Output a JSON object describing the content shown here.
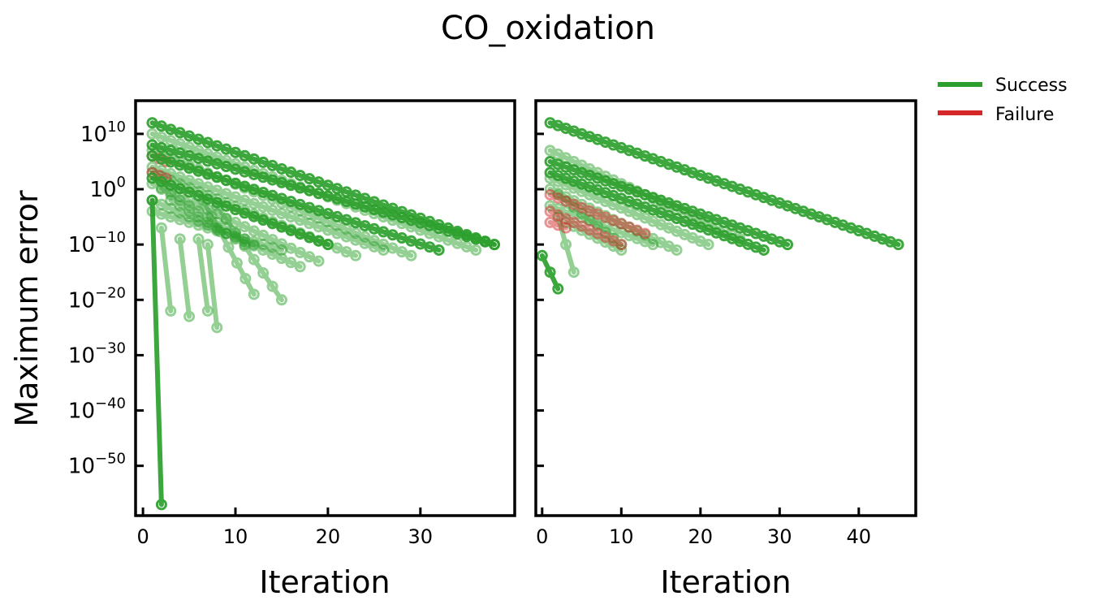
{
  "figure": {
    "title": "CO_oxidation",
    "ylabel": "Maximum error",
    "legend": {
      "placement": "outside-top-right",
      "items": [
        {
          "label": "Success",
          "color": "#2ca02c"
        },
        {
          "label": "Failure",
          "color": "#d62728"
        }
      ]
    },
    "colors": {
      "success": "#2ca02c",
      "failure": "#d62728",
      "axes": "#000000"
    }
  },
  "chart_data": [
    {
      "type": "line",
      "panel": "left",
      "xlabel": "Iteration",
      "ylabel": "Maximum error",
      "y_scale": "log",
      "xlim": [
        -0.8,
        40.2
      ],
      "ylim_exponent": [
        -59,
        16
      ],
      "xticks": [
        0,
        10,
        20,
        30
      ],
      "yticks": [
        {
          "label": "10",
          "sup": "10",
          "exp": 10
        },
        {
          "label": "10",
          "sup": "0",
          "exp": 0
        },
        {
          "label": "10",
          "sup": "−10",
          "exp": -10
        },
        {
          "label": "10",
          "sup": "−20",
          "exp": -20
        },
        {
          "label": "10",
          "sup": "−30",
          "exp": -30
        },
        {
          "label": "10",
          "sup": "−40",
          "exp": -40
        },
        {
          "label": "10",
          "sup": "−50",
          "exp": -50
        }
      ],
      "series": [
        {
          "status": "success",
          "style": "solid",
          "start": [
            1,
            12
          ],
          "end": [
            38,
            -10
          ]
        },
        {
          "status": "success",
          "style": "solid",
          "start": [
            1,
            8
          ],
          "end": [
            38,
            -10
          ]
        },
        {
          "status": "success",
          "style": "solid",
          "start": [
            1,
            6
          ],
          "end": [
            32,
            -11
          ]
        },
        {
          "status": "success",
          "style": "solid",
          "start": [
            1,
            2
          ],
          "end": [
            20,
            -10
          ]
        },
        {
          "status": "success",
          "style": "faint",
          "start": [
            1,
            10
          ],
          "end": [
            36,
            -11
          ]
        },
        {
          "status": "success",
          "style": "faint",
          "start": [
            1,
            7
          ],
          "end": [
            29,
            -12
          ]
        },
        {
          "status": "success",
          "style": "faint",
          "start": [
            1,
            4
          ],
          "end": [
            26,
            -11
          ]
        },
        {
          "status": "success",
          "style": "faint",
          "start": [
            1,
            3
          ],
          "end": [
            23,
            -12
          ]
        },
        {
          "status": "success",
          "style": "faint",
          "start": [
            1,
            1
          ],
          "end": [
            19,
            -13
          ]
        },
        {
          "status": "success",
          "style": "faint",
          "start": [
            1,
            -2
          ],
          "end": [
            17,
            -14
          ]
        },
        {
          "status": "success",
          "style": "faint",
          "start": [
            1,
            -4
          ],
          "end": [
            15,
            -11
          ]
        },
        {
          "status": "success",
          "style": "faint",
          "start": [
            2,
            0
          ],
          "end": [
            12,
            -10
          ]
        },
        {
          "status": "success",
          "style": "faint",
          "start": [
            3,
            -2
          ],
          "end": [
            11,
            -10
          ]
        },
        {
          "status": "success",
          "style": "faint",
          "start": [
            6.5,
            -2
          ],
          "end": [
            12,
            -19
          ]
        },
        {
          "status": "success",
          "style": "faint",
          "start": [
            8,
            -3
          ],
          "end": [
            15,
            -20
          ]
        },
        {
          "status": "success",
          "style": "faint",
          "start": [
            6,
            -9
          ],
          "end": [
            7,
            -22
          ]
        },
        {
          "status": "success",
          "style": "faint",
          "start": [
            7,
            -10
          ],
          "end": [
            8,
            -25
          ]
        },
        {
          "status": "success",
          "style": "faint",
          "start": [
            4,
            -9
          ],
          "end": [
            5,
            -23
          ]
        },
        {
          "status": "success",
          "style": "faint",
          "start": [
            2,
            -7
          ],
          "end": [
            3,
            -22
          ]
        },
        {
          "status": "success",
          "style": "solid",
          "start": [
            1,
            -2
          ],
          "end": [
            2,
            -57
          ]
        },
        {
          "status": "failure",
          "style": "faint",
          "start": [
            1,
            6
          ],
          "end": [
            2.5,
            5
          ]
        },
        {
          "status": "failure",
          "style": "faint",
          "start": [
            1,
            3
          ],
          "end": [
            2.5,
            2
          ]
        }
      ]
    },
    {
      "type": "line",
      "panel": "right",
      "xlabel": "Iteration",
      "y_scale": "log",
      "xlim": [
        -0.8,
        47.2
      ],
      "ylim_exponent": [
        -59,
        16
      ],
      "xticks": [
        0,
        10,
        20,
        30,
        40
      ],
      "series": [
        {
          "status": "success",
          "style": "solid",
          "start": [
            1,
            12
          ],
          "end": [
            45,
            -10
          ]
        },
        {
          "status": "success",
          "style": "solid",
          "start": [
            1,
            5
          ],
          "end": [
            31,
            -10
          ]
        },
        {
          "status": "success",
          "style": "solid",
          "start": [
            1,
            3
          ],
          "end": [
            28,
            -11
          ]
        },
        {
          "status": "success",
          "style": "faint",
          "start": [
            1,
            7
          ],
          "end": [
            25,
            -9
          ]
        },
        {
          "status": "success",
          "style": "faint",
          "start": [
            1,
            2
          ],
          "end": [
            21,
            -10
          ]
        },
        {
          "status": "success",
          "style": "faint",
          "start": [
            1,
            0
          ],
          "end": [
            17,
            -11
          ]
        },
        {
          "status": "success",
          "style": "faint",
          "start": [
            1,
            -3
          ],
          "end": [
            14,
            -10
          ]
        },
        {
          "status": "success",
          "style": "faint",
          "start": [
            2,
            -1
          ],
          "end": [
            10,
            -10
          ]
        },
        {
          "status": "success",
          "style": "faint",
          "start": [
            3,
            -6
          ],
          "end": [
            10,
            -11
          ]
        },
        {
          "status": "success",
          "style": "faint",
          "start": [
            2,
            -5
          ],
          "end": [
            4,
            -15
          ]
        },
        {
          "status": "success",
          "style": "solid",
          "start": [
            0,
            -12
          ],
          "end": [
            2,
            -18
          ]
        },
        {
          "status": "failure",
          "style": "faint",
          "start": [
            1,
            -1
          ],
          "end": [
            13,
            -8
          ]
        },
        {
          "status": "failure",
          "style": "faint",
          "start": [
            1,
            -4
          ],
          "end": [
            10,
            -10
          ]
        },
        {
          "status": "failure",
          "style": "faint",
          "start": [
            1,
            -6
          ],
          "end": [
            3,
            -7
          ]
        }
      ]
    }
  ]
}
